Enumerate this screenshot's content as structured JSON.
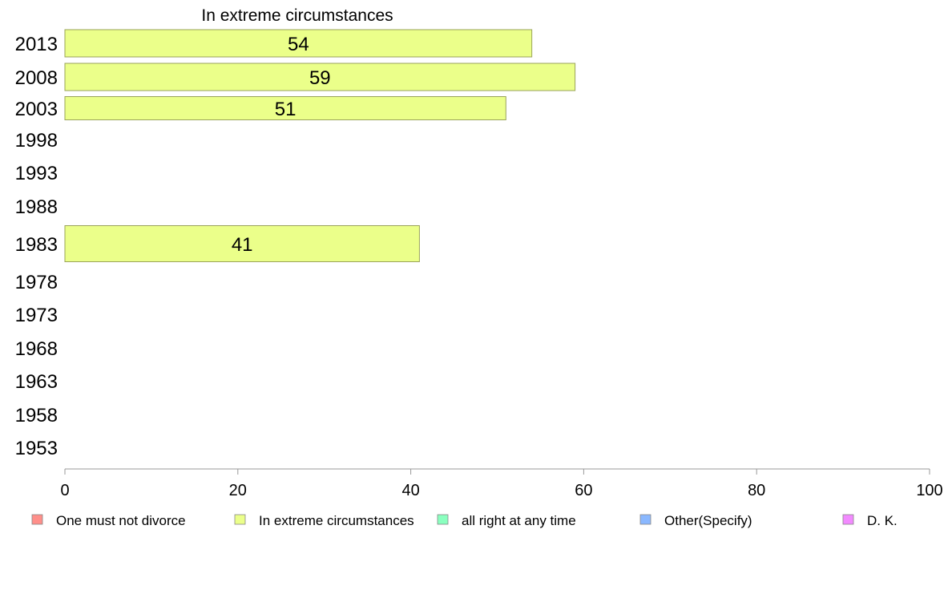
{
  "chart_data": {
    "type": "bar",
    "orientation": "horizontal",
    "title": "In extreme circumstances",
    "categories": [
      "2013",
      "2008",
      "2003",
      "1998",
      "1993",
      "1988",
      "1983",
      "1978",
      "1973",
      "1968",
      "1963",
      "1958",
      "1953"
    ],
    "series": [
      {
        "name": "In extreme circumstances",
        "color": "#ebff8a",
        "values": [
          54,
          59,
          51,
          null,
          null,
          null,
          41,
          null,
          null,
          null,
          null,
          null,
          null
        ],
        "labels": [
          "54",
          "59",
          "51",
          "",
          "",
          "",
          "41",
          "",
          "",
          "",
          "",
          "",
          ""
        ]
      }
    ],
    "xlim": [
      0,
      100
    ],
    "x_ticks": [
      "0",
      "20",
      "40",
      "60",
      "80",
      "100"
    ],
    "grid": false,
    "legend": {
      "position": "bottom",
      "items": [
        {
          "label": "One must not divorce",
          "color": "#ff8f8a"
        },
        {
          "label": "In extreme circumstances",
          "color": "#ebff8a"
        },
        {
          "label": "all right at any time",
          "color": "#8affbf"
        },
        {
          "label": "Other(Specify)",
          "color": "#8ab8ff"
        },
        {
          "label": "D. K.",
          "color": "#f28aff"
        }
      ]
    }
  }
}
